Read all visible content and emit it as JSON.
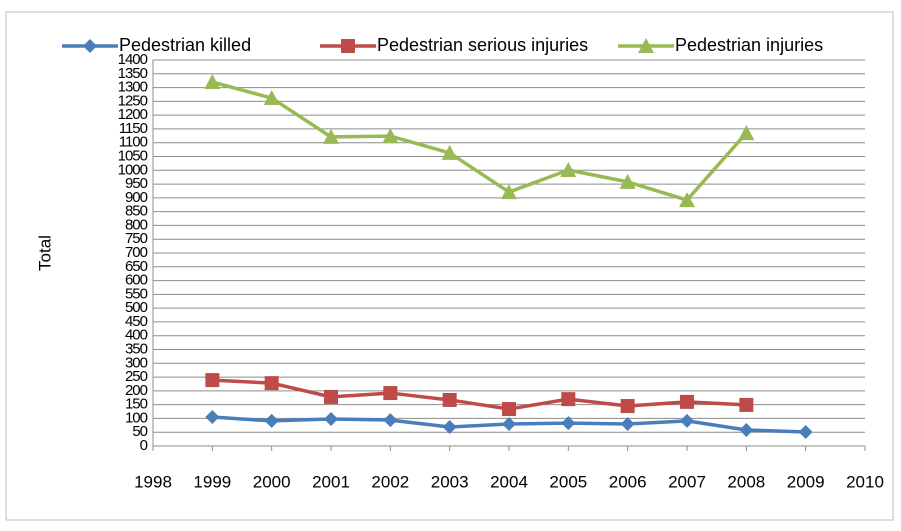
{
  "chart_data": {
    "type": "line",
    "ylabel": "Total",
    "x": [
      1999,
      2000,
      2001,
      2002,
      2003,
      2004,
      2005,
      2006,
      2007,
      2008,
      2009
    ],
    "xlim": [
      1998,
      2010
    ],
    "xticks": [
      1998,
      1999,
      2000,
      2001,
      2002,
      2003,
      2004,
      2005,
      2006,
      2007,
      2008,
      2009,
      2010
    ],
    "ylim": [
      0,
      1400
    ],
    "yticks": [
      0,
      50,
      100,
      150,
      200,
      250,
      300,
      350,
      400,
      450,
      500,
      550,
      600,
      650,
      700,
      750,
      800,
      850,
      900,
      950,
      1000,
      1050,
      1100,
      1150,
      1200,
      1250,
      1300,
      1350,
      1400
    ],
    "grid": true,
    "legend": "top",
    "series": [
      {
        "name": "Pedestrian killed",
        "color": "#4a7ebb",
        "marker": "diamond",
        "values": [
          105,
          91,
          98,
          94,
          69,
          80,
          83,
          80,
          91,
          58,
          51
        ]
      },
      {
        "name": "Pedestrian serious injuries",
        "color": "#be4b48",
        "marker": "square",
        "values": [
          239,
          228,
          178,
          192,
          167,
          134,
          170,
          145,
          160,
          149,
          null
        ]
      },
      {
        "name": "Pedestrian injuries",
        "color": "#98b954",
        "marker": "triangle",
        "values": [
          1320,
          1262,
          1121,
          1124,
          1063,
          921,
          1001,
          958,
          892,
          1135,
          null
        ]
      }
    ]
  }
}
